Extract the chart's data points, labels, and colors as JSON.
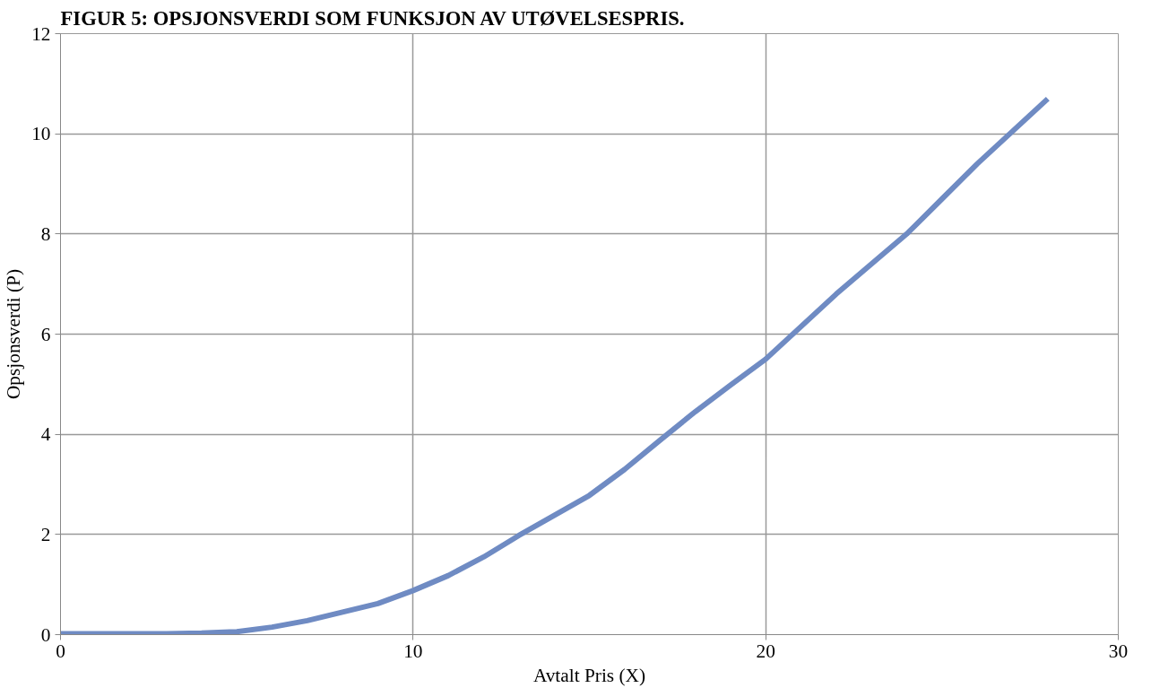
{
  "chart_data": {
    "type": "line",
    "title": "FIGUR 5: OPSJONSVERDI SOM FUNKSJON AV UTØVELSESPRIS.",
    "xlabel": "Avtalt Pris (X)",
    "ylabel": "Opsjonsverdi (P)",
    "x": [
      0,
      1,
      2,
      3,
      4,
      5,
      6,
      7,
      8,
      9,
      10,
      11,
      12,
      13,
      14,
      15,
      16,
      17,
      18,
      19,
      20,
      21,
      22,
      23,
      24,
      25,
      26,
      27,
      28
    ],
    "series": [
      {
        "color": "#6f8bc3",
        "values": [
          0.02,
          0.02,
          0.02,
          0.02,
          0.03,
          0.06,
          0.15,
          0.28,
          0.45,
          0.62,
          0.88,
          1.18,
          1.55,
          1.98,
          2.38,
          2.78,
          3.3,
          3.88,
          4.45,
          4.98,
          5.5,
          6.15,
          6.8,
          7.4,
          8.0,
          8.7,
          9.4,
          10.05,
          10.7
        ]
      }
    ],
    "xlim": [
      0,
      30
    ],
    "xticks": [
      0,
      10,
      20,
      30
    ],
    "ylim": [
      0,
      12
    ],
    "yticks": [
      0,
      2,
      4,
      6,
      8,
      10,
      12
    ],
    "grid": true,
    "marker": "none",
    "line_style": "solid"
  }
}
